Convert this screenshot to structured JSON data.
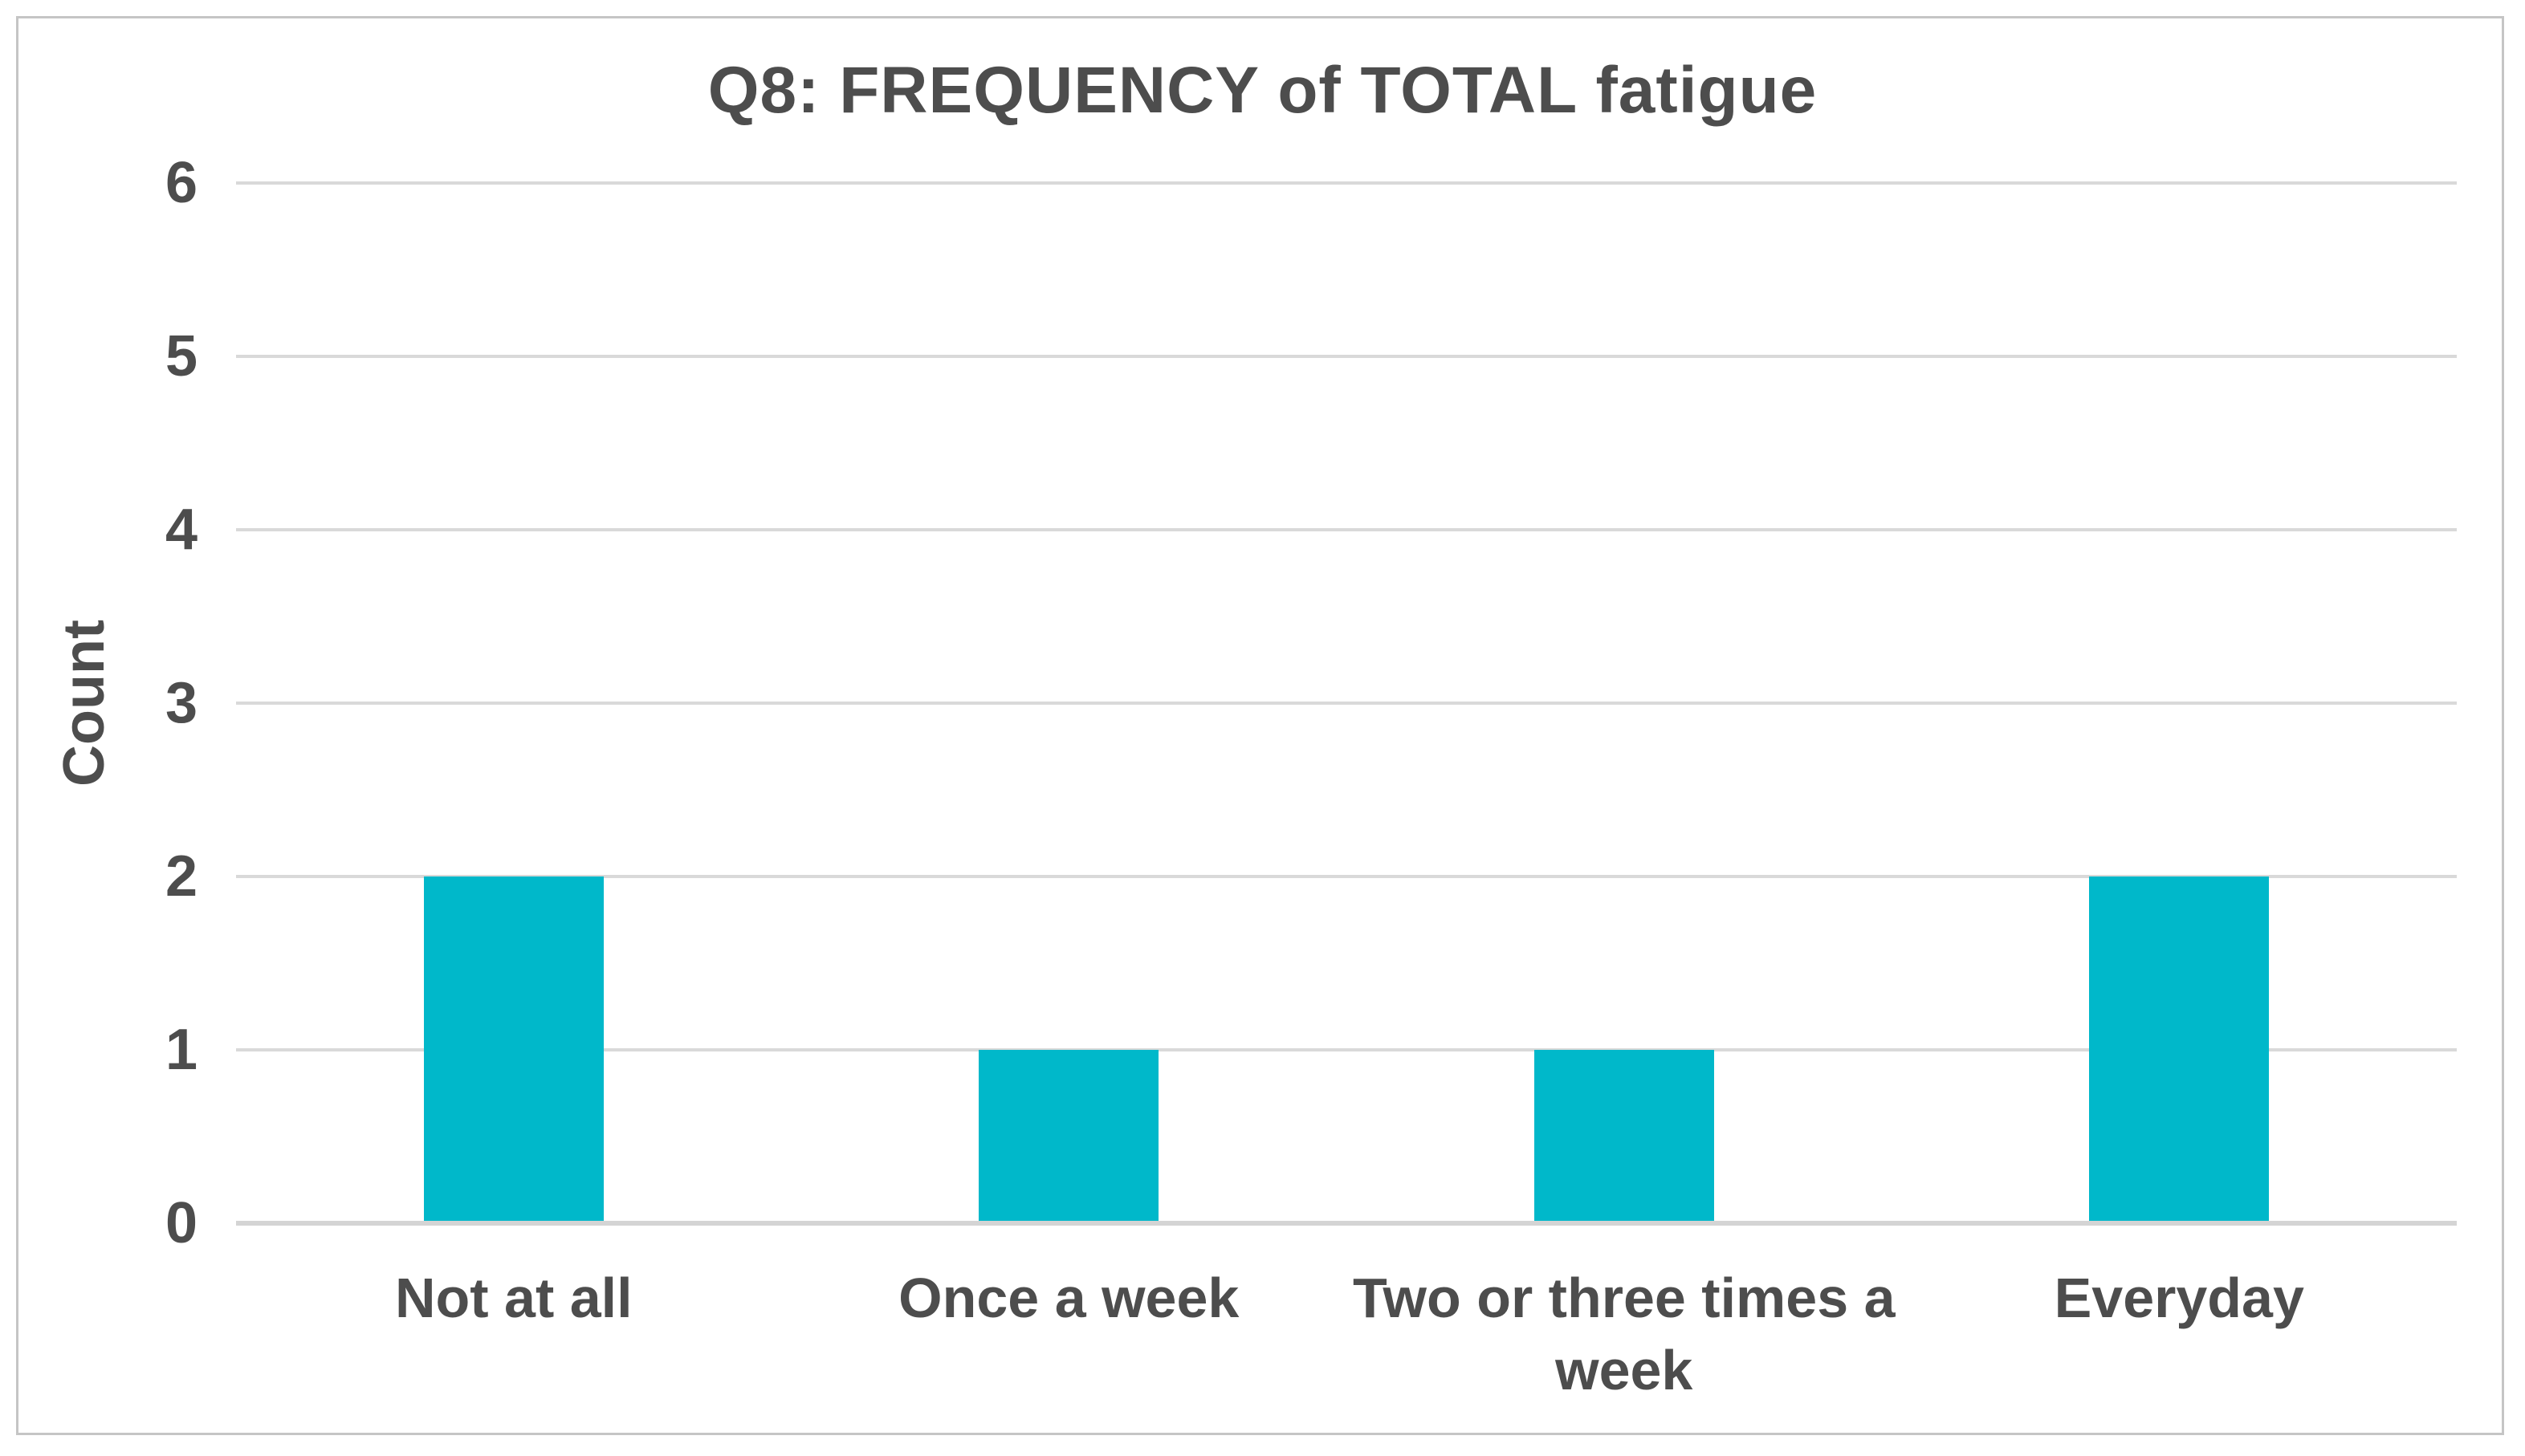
{
  "chart_data": {
    "type": "bar",
    "title": "Q8: FREQUENCY of TOTAL fatigue",
    "categories": [
      "Not at all",
      "Once a week",
      "Two or three times a week",
      "Everyday"
    ],
    "values": [
      2,
      1,
      1,
      2
    ],
    "xlabel": "",
    "ylabel": "Count",
    "ylim": [
      0,
      6
    ],
    "yticks": [
      0,
      1,
      2,
      3,
      4,
      5,
      6
    ],
    "grid": "horizontal gridlines on",
    "legend": "none",
    "colors": {
      "bar": "#00b8ca",
      "gridline": "#d9d9d9",
      "axis_line": "#d4d4d4",
      "text": "#4d4d4d",
      "frame_border": "#c5c5c5",
      "background": "#ffffff"
    }
  }
}
